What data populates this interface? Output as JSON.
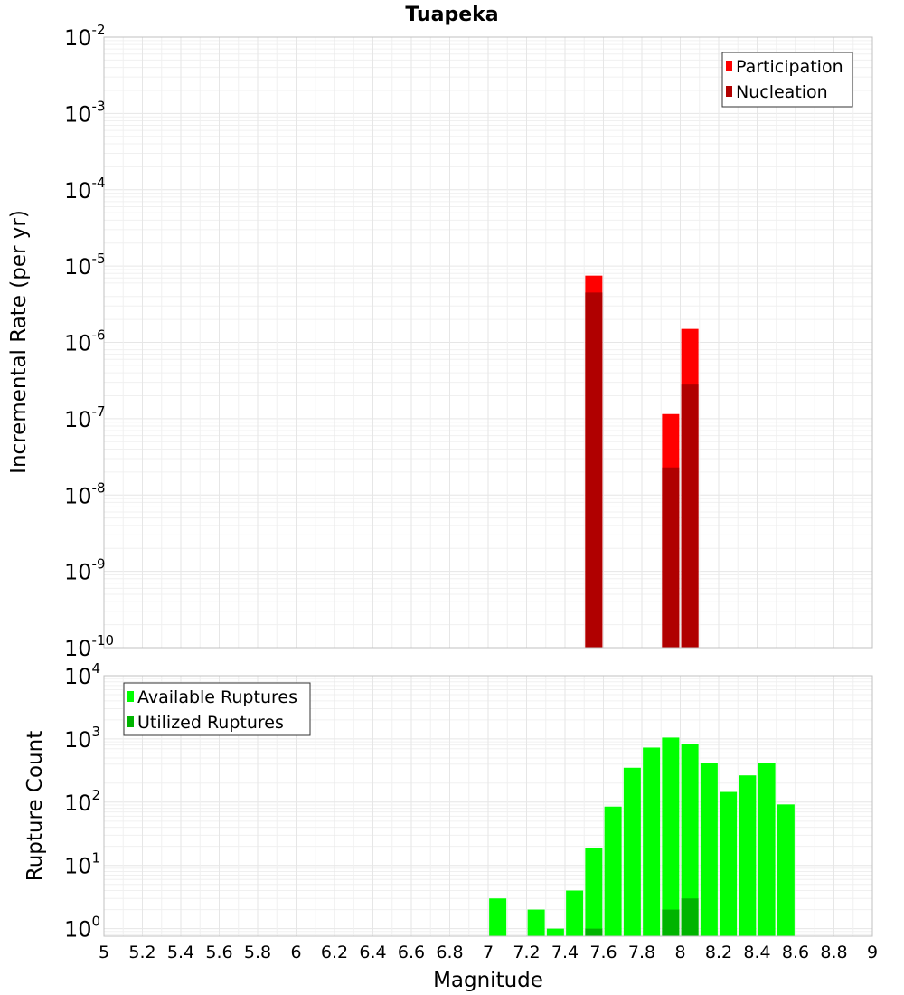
{
  "title": "Tuapeka",
  "colors": {
    "participation": "#ff0000",
    "nucleation": "#b00000",
    "available": "#00ff00",
    "utilized": "#00b400"
  },
  "chart_data": [
    {
      "type": "bar",
      "scale": "log",
      "ylabel": "Incremental Rate (per yr)",
      "xlabel": "",
      "xlim": [
        5,
        9
      ],
      "ylim_exponents": [
        -10,
        -2
      ],
      "y_tick_exponents": [
        "-10",
        "-9",
        "-8",
        "-7",
        "-6",
        "-5",
        "-4",
        "-3",
        "-2"
      ],
      "legend": {
        "position": "top-right",
        "entries": [
          {
            "label": "Participation",
            "color_key": "participation"
          },
          {
            "label": "Nucleation",
            "color_key": "nucleation"
          }
        ]
      },
      "series": [
        {
          "name": "Participation",
          "color_key": "participation",
          "points": [
            {
              "x": 7.55,
              "y": 7.5e-06
            },
            {
              "x": 7.95,
              "y": 1.15e-07
            },
            {
              "x": 8.05,
              "y": 1.5e-06
            }
          ]
        },
        {
          "name": "Nucleation",
          "color_key": "nucleation",
          "points": [
            {
              "x": 7.55,
              "y": 4.5e-06
            },
            {
              "x": 7.95,
              "y": 2.3e-08
            },
            {
              "x": 8.05,
              "y": 2.8e-07
            }
          ]
        }
      ]
    },
    {
      "type": "bar",
      "scale": "log",
      "ylabel": "Rupture Count",
      "xlabel": "Magnitude",
      "xlim": [
        5,
        9
      ],
      "ylim_exponents": [
        -0.12,
        4
      ],
      "y_tick_exponents": [
        "0",
        "1",
        "2",
        "3",
        "4"
      ],
      "x_tick_labels": [
        "5",
        "5.2",
        "5.4",
        "5.6",
        "5.8",
        "6",
        "6.2",
        "6.4",
        "6.6",
        "6.8",
        "7",
        "7.2",
        "7.4",
        "7.6",
        "7.8",
        "8",
        "8.2",
        "8.4",
        "8.6",
        "8.8",
        "9"
      ],
      "legend": {
        "position": "top-left",
        "entries": [
          {
            "label": "Available Ruptures",
            "color_key": "available"
          },
          {
            "label": "Utilized Ruptures",
            "color_key": "utilized"
          }
        ]
      },
      "series": [
        {
          "name": "Available Ruptures",
          "color_key": "available",
          "points": [
            {
              "x": 7.05,
              "y": 3
            },
            {
              "x": 7.25,
              "y": 2
            },
            {
              "x": 7.35,
              "y": 1
            },
            {
              "x": 7.45,
              "y": 4
            },
            {
              "x": 7.55,
              "y": 19
            },
            {
              "x": 7.65,
              "y": 85
            },
            {
              "x": 7.75,
              "y": 350
            },
            {
              "x": 7.85,
              "y": 730
            },
            {
              "x": 7.95,
              "y": 1050
            },
            {
              "x": 8.05,
              "y": 830
            },
            {
              "x": 8.15,
              "y": 420
            },
            {
              "x": 8.25,
              "y": 145
            },
            {
              "x": 8.35,
              "y": 265
            },
            {
              "x": 8.45,
              "y": 410
            },
            {
              "x": 8.55,
              "y": 92
            }
          ]
        },
        {
          "name": "Utilized Ruptures",
          "color_key": "utilized",
          "points": [
            {
              "x": 7.55,
              "y": 1
            },
            {
              "x": 7.95,
              "y": 2
            },
            {
              "x": 8.05,
              "y": 3
            }
          ]
        }
      ]
    }
  ]
}
